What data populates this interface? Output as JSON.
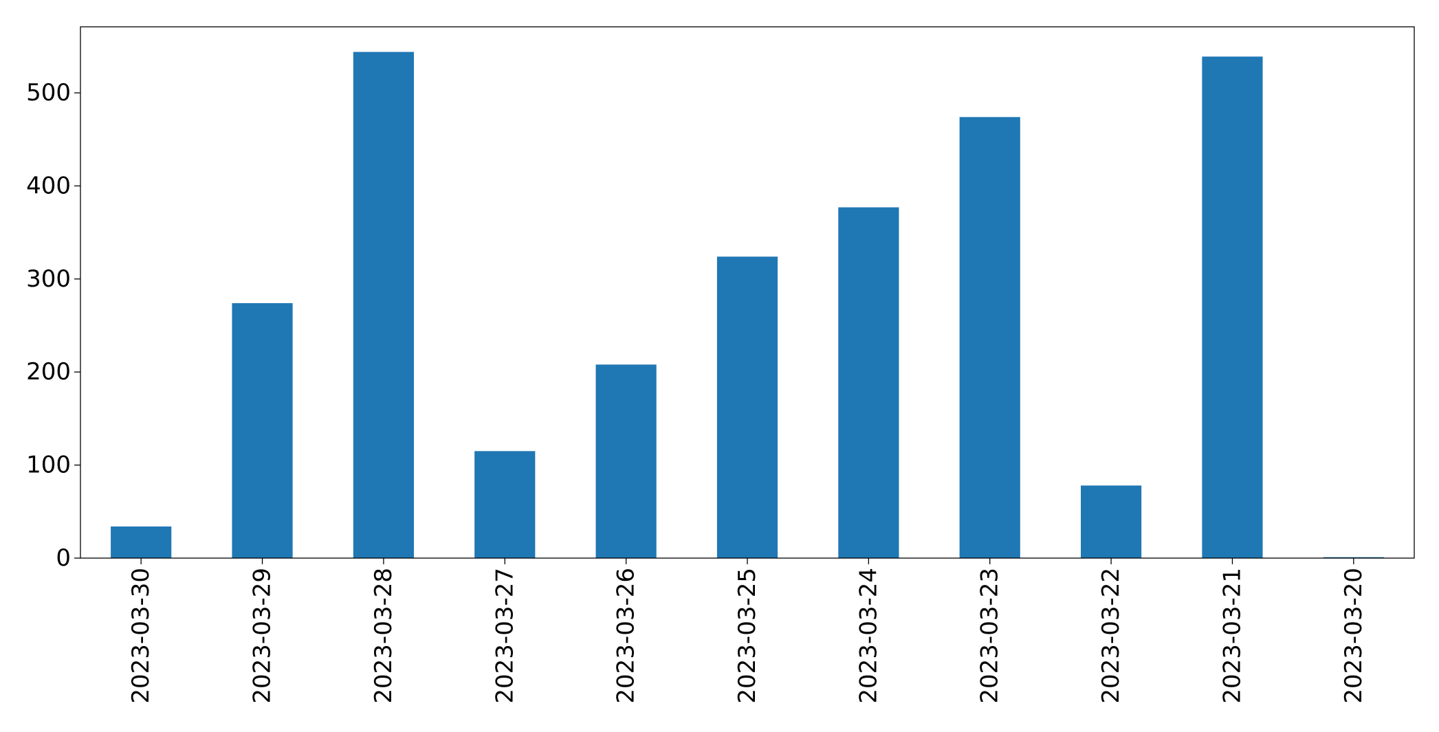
{
  "chart_data": {
    "type": "bar",
    "categories": [
      "2023-03-30",
      "2023-03-29",
      "2023-03-28",
      "2023-03-27",
      "2023-03-26",
      "2023-03-25",
      "2023-03-24",
      "2023-03-23",
      "2023-03-22",
      "2023-03-21",
      "2023-03-20"
    ],
    "values": [
      34,
      274,
      544,
      115,
      208,
      324,
      377,
      474,
      78,
      539,
      1
    ],
    "title": "",
    "xlabel": "",
    "ylabel": "",
    "ylim": [
      0,
      571
    ],
    "yticks": [
      0,
      100,
      200,
      300,
      400,
      500
    ],
    "grid": false,
    "legend": "none",
    "bar_color": "#1f77b4",
    "x_tick_rotation": "vertical"
  }
}
